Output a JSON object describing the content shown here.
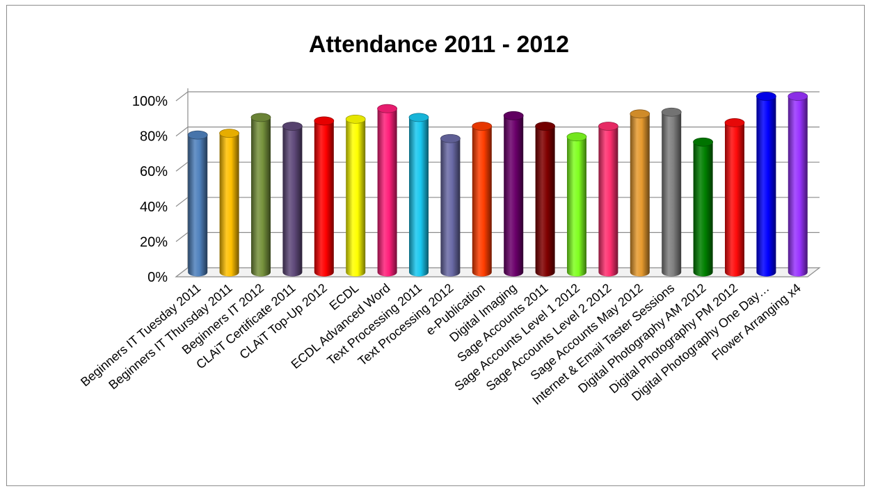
{
  "chart_data": {
    "type": "bar",
    "style": "3d-cylinder",
    "title": "Attendance 2011 - 2012",
    "xlabel": "",
    "ylabel": "",
    "ylim": [
      0,
      1
    ],
    "y_ticks": [
      "0%",
      "20%",
      "40%",
      "60%",
      "80%",
      "100%"
    ],
    "grid": true,
    "legend": "none",
    "categories": [
      "Beginners IT Tuesday 2011",
      "Beginners IT Thursday 2011",
      "Beginners IT 2012",
      "CLAiT Certificate 2011",
      "CLAiT Top-Up 2012",
      "ECDL",
      "ECDL Advanced Word",
      "Text Processing 2011",
      "Text Processing 2012",
      "e-Publication",
      "Digital Imaging",
      "Sage Accounts 2011",
      "Sage Accounts Level 1 2012",
      "Sage Accounts Level 2 2012",
      "Sage Accounts May 2012",
      "Internet & Email Taster Sessions",
      "Digital Photography AM 2012",
      "Digital Photography PM 2012",
      "Digital Photography One Day…",
      "Flower Arranging x4"
    ],
    "values": [
      0.78,
      0.79,
      0.88,
      0.83,
      0.86,
      0.87,
      0.93,
      0.88,
      0.76,
      0.83,
      0.89,
      0.83,
      0.77,
      0.83,
      0.9,
      0.91,
      0.74,
      0.85,
      1.0,
      1.0
    ],
    "colors": [
      "#4f81bd",
      "#ffc000",
      "#76923c",
      "#5f497a",
      "#ff0000",
      "#ffff00",
      "#ff1f7a",
      "#19c8f0",
      "#6a6aa6",
      "#ff3d00",
      "#6b006b",
      "#800000",
      "#80ff20",
      "#ff2f6f",
      "#e69a2e",
      "#808080",
      "#008000",
      "#ff0a0a",
      "#0000ff",
      "#9933ff"
    ]
  }
}
